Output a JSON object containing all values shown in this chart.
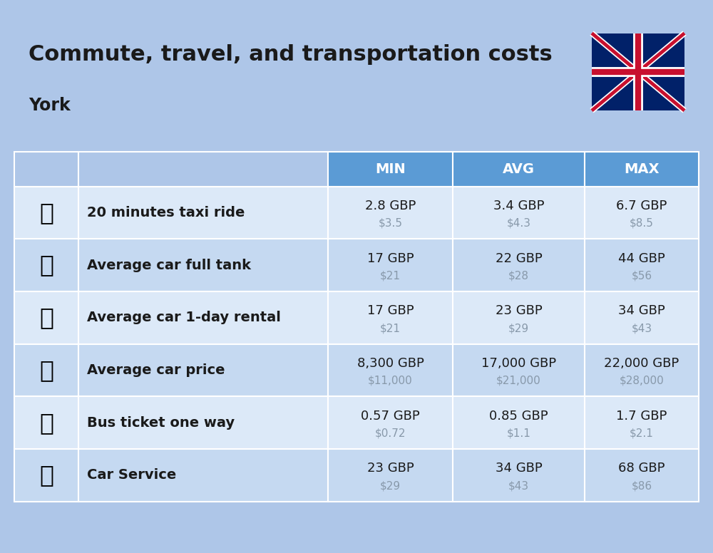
{
  "title": "Commute, travel, and transportation costs",
  "subtitle": "York",
  "background_color": "#aec6e8",
  "header_bg_color": "#5b9bd5",
  "header_text_color": "#ffffff",
  "row_bg_color_light": "#c5d9f1",
  "row_bg_color_white": "#dce9f8",
  "col_header_labels": [
    "MIN",
    "AVG",
    "MAX"
  ],
  "rows": [
    {
      "label": "20 minutes taxi ride",
      "min_gbp": "2.8 GBP",
      "min_usd": "$3.5",
      "avg_gbp": "3.4 GBP",
      "avg_usd": "$4.3",
      "max_gbp": "6.7 GBP",
      "max_usd": "$8.5"
    },
    {
      "label": "Average car full tank",
      "min_gbp": "17 GBP",
      "min_usd": "$21",
      "avg_gbp": "22 GBP",
      "avg_usd": "$28",
      "max_gbp": "44 GBP",
      "max_usd": "$56"
    },
    {
      "label": "Average car 1-day rental",
      "min_gbp": "17 GBP",
      "min_usd": "$21",
      "avg_gbp": "23 GBP",
      "avg_usd": "$29",
      "max_gbp": "34 GBP",
      "max_usd": "$43"
    },
    {
      "label": "Average car price",
      "min_gbp": "8,300 GBP",
      "min_usd": "$11,000",
      "avg_gbp": "17,000 GBP",
      "avg_usd": "$21,000",
      "max_gbp": "22,000 GBP",
      "max_usd": "$28,000"
    },
    {
      "label": "Bus ticket one way",
      "min_gbp": "0.57 GBP",
      "min_usd": "$0.72",
      "avg_gbp": "0.85 GBP",
      "avg_usd": "$1.1",
      "max_gbp": "1.7 GBP",
      "max_usd": "$2.1"
    },
    {
      "label": "Car Service",
      "min_gbp": "23 GBP",
      "min_usd": "$29",
      "avg_gbp": "34 GBP",
      "avg_usd": "$43",
      "max_gbp": "68 GBP",
      "max_usd": "$86"
    }
  ],
  "icon_emojis": [
    "🚕",
    "⛽️",
    "🚙",
    "🚗",
    "🚌",
    "🔧"
  ],
  "title_fontsize": 22,
  "subtitle_fontsize": 17,
  "header_fontsize": 14,
  "label_fontsize": 14,
  "value_fontsize": 13,
  "usd_fontsize": 11,
  "usd_color": "#8899aa",
  "label_color": "#1a1a1a",
  "value_color": "#1a1a1a"
}
